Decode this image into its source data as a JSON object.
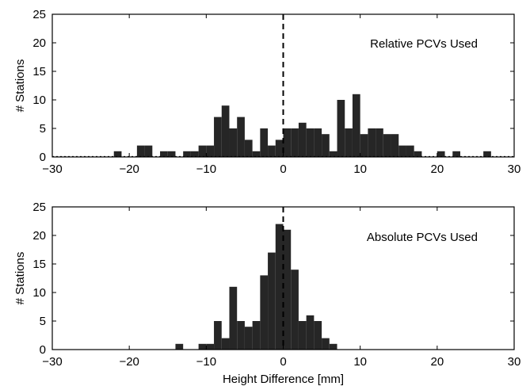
{
  "chart_data": [
    {
      "type": "bar",
      "annotation": "Relative PCVs Used",
      "xlabel": "",
      "ylabel": "# Stations",
      "xlim": [
        -30,
        30
      ],
      "ylim": [
        0,
        25
      ],
      "xticks": [
        "−30",
        "−20",
        "−10",
        "0",
        "10",
        "20",
        "30"
      ],
      "yticks": [
        "0",
        "5",
        "10",
        "15",
        "20",
        "25"
      ],
      "bin_width": 1,
      "bar_color": "#262626",
      "reference_line_x": 0,
      "baseline_dotted": true,
      "bins": [
        {
          "x": -22,
          "value": 1
        },
        {
          "x": -19,
          "value": 2
        },
        {
          "x": -18,
          "value": 2
        },
        {
          "x": -16,
          "value": 1
        },
        {
          "x": -15,
          "value": 1
        },
        {
          "x": -13,
          "value": 1
        },
        {
          "x": -12,
          "value": 1
        },
        {
          "x": -11,
          "value": 2
        },
        {
          "x": -10,
          "value": 2
        },
        {
          "x": -9,
          "value": 7
        },
        {
          "x": -8,
          "value": 9
        },
        {
          "x": -7,
          "value": 5
        },
        {
          "x": -6,
          "value": 7
        },
        {
          "x": -5,
          "value": 3
        },
        {
          "x": -4,
          "value": 1
        },
        {
          "x": -3,
          "value": 5
        },
        {
          "x": -2,
          "value": 2
        },
        {
          "x": -1,
          "value": 3
        },
        {
          "x": 0,
          "value": 5
        },
        {
          "x": 1,
          "value": 5
        },
        {
          "x": 2,
          "value": 6
        },
        {
          "x": 3,
          "value": 5
        },
        {
          "x": 4,
          "value": 5
        },
        {
          "x": 5,
          "value": 4
        },
        {
          "x": 6,
          "value": 1
        },
        {
          "x": 7,
          "value": 10
        },
        {
          "x": 8,
          "value": 5
        },
        {
          "x": 9,
          "value": 11
        },
        {
          "x": 10,
          "value": 4
        },
        {
          "x": 11,
          "value": 5
        },
        {
          "x": 12,
          "value": 5
        },
        {
          "x": 13,
          "value": 4
        },
        {
          "x": 14,
          "value": 4
        },
        {
          "x": 15,
          "value": 2
        },
        {
          "x": 16,
          "value": 2
        },
        {
          "x": 17,
          "value": 1
        },
        {
          "x": 20,
          "value": 1
        },
        {
          "x": 22,
          "value": 1
        },
        {
          "x": 26,
          "value": 1
        }
      ]
    },
    {
      "type": "bar",
      "annotation": "Absolute PCVs Used",
      "xlabel": "Height Difference [mm]",
      "ylabel": "# Stations",
      "xlim": [
        -30,
        30
      ],
      "ylim": [
        0,
        25
      ],
      "xticks": [
        "−30",
        "−20",
        "−10",
        "0",
        "10",
        "20",
        "30"
      ],
      "yticks": [
        "0",
        "5",
        "10",
        "15",
        "20",
        "25"
      ],
      "bin_width": 1,
      "bar_color": "#262626",
      "reference_line_x": 0,
      "baseline_dotted": false,
      "bins": [
        {
          "x": -14,
          "value": 1
        },
        {
          "x": -11,
          "value": 1
        },
        {
          "x": -10,
          "value": 1
        },
        {
          "x": -9,
          "value": 5
        },
        {
          "x": -8,
          "value": 2
        },
        {
          "x": -7,
          "value": 11
        },
        {
          "x": -6,
          "value": 5
        },
        {
          "x": -5,
          "value": 4
        },
        {
          "x": -4,
          "value": 5
        },
        {
          "x": -3,
          "value": 13
        },
        {
          "x": -2,
          "value": 17
        },
        {
          "x": -1,
          "value": 22
        },
        {
          "x": 0,
          "value": 21
        },
        {
          "x": 1,
          "value": 14
        },
        {
          "x": 2,
          "value": 5
        },
        {
          "x": 3,
          "value": 6
        },
        {
          "x": 4,
          "value": 5
        },
        {
          "x": 5,
          "value": 2
        },
        {
          "x": 6,
          "value": 1
        }
      ]
    }
  ]
}
